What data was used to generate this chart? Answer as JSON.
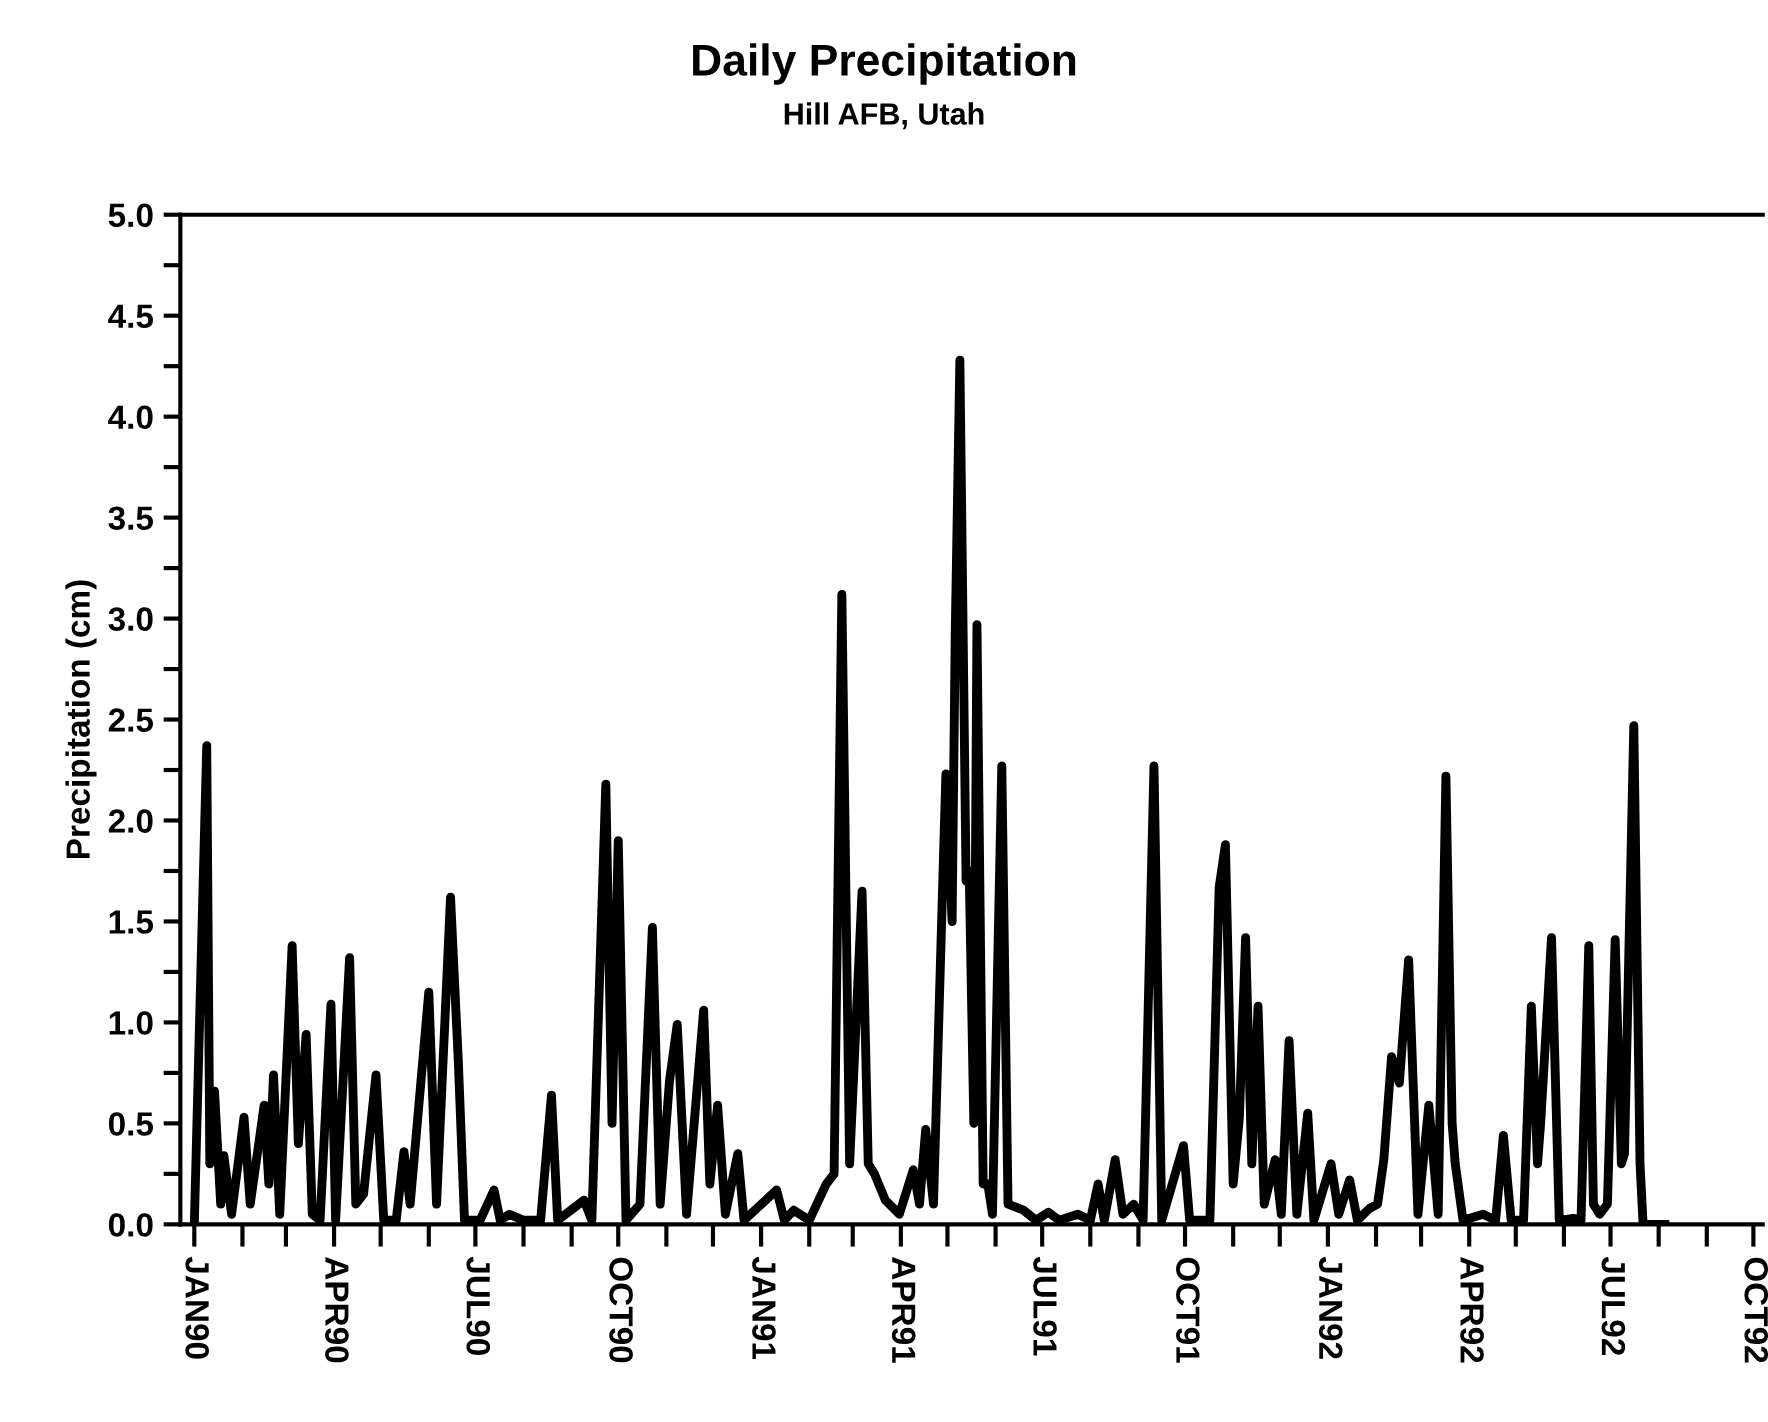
{
  "chart_data": {
    "type": "line",
    "title": "Daily Precipitation",
    "subtitle": "Hill AFB, Utah",
    "ylabel": "Precipitation (cm)",
    "x": [
      "1990-01-01",
      "1990-01-09",
      "1990-01-11",
      "1990-01-14",
      "1990-01-18",
      "1990-01-20",
      "1990-01-25",
      "1990-02-02",
      "1990-02-06",
      "1990-02-15",
      "1990-02-18",
      "1990-02-21",
      "1990-02-25",
      "1990-03-05",
      "1990-03-09",
      "1990-03-14",
      "1990-03-18",
      "1990-03-23",
      "1990-03-30",
      "1990-04-02",
      "1990-04-11",
      "1990-04-15",
      "1990-04-20",
      "1990-04-28",
      "1990-05-03",
      "1990-05-11",
      "1990-05-16",
      "1990-05-20",
      "1990-06-01",
      "1990-06-06",
      "1990-06-15",
      "1990-06-20",
      "1990-06-24",
      "1990-07-04",
      "1990-07-13",
      "1990-07-17",
      "1990-07-23",
      "1990-08-01",
      "1990-08-12",
      "1990-08-19",
      "1990-08-23",
      "1990-09-09",
      "1990-09-14",
      "1990-09-23",
      "1990-09-27",
      "1990-10-01",
      "1990-10-06",
      "1990-10-15",
      "1990-10-23",
      "1990-10-28",
      "1990-11-03",
      "1990-11-08",
      "1990-11-14",
      "1990-11-25",
      "1990-11-29",
      "1990-12-04",
      "1990-12-09",
      "1990-12-17",
      "1990-12-21",
      "1991-01-11",
      "1991-01-16",
      "1991-01-22",
      "1991-02-01",
      "1991-02-12",
      "1991-02-17",
      "1991-02-22",
      "1991-02-27",
      "1991-03-07",
      "1991-03-11",
      "1991-03-15",
      "1991-03-22",
      "1991-03-31",
      "1991-04-09",
      "1991-04-13",
      "1991-04-17",
      "1991-04-22",
      "1991-04-30",
      "1991-05-04",
      "1991-05-06",
      "1991-05-09",
      "1991-05-13",
      "1991-05-15",
      "1991-05-18",
      "1991-05-20",
      "1991-05-24",
      "1991-05-27",
      "1991-05-30",
      "1991-06-05",
      "1991-06-09",
      "1991-06-19",
      "1991-06-27",
      "1991-07-05",
      "1991-07-12",
      "1991-07-24",
      "1991-08-01",
      "1991-08-06",
      "1991-08-10",
      "1991-08-17",
      "1991-08-22",
      "1991-08-29",
      "1991-09-04",
      "1991-09-11",
      "1991-09-16",
      "1991-09-30",
      "1991-10-04",
      "1991-10-17",
      "1991-10-23",
      "1991-10-27",
      "1991-11-01",
      "1991-11-05",
      "1991-11-09",
      "1991-11-13",
      "1991-11-17",
      "1991-11-21",
      "1991-11-28",
      "1991-12-02",
      "1991-12-07",
      "1991-12-12",
      "1991-12-19",
      "1991-12-23",
      "1992-01-03",
      "1992-01-08",
      "1992-01-15",
      "1992-01-20",
      "1992-01-28",
      "1992-02-02",
      "1992-02-06",
      "1992-02-11",
      "1992-02-16",
      "1992-02-22",
      "1992-02-28",
      "1992-03-06",
      "1992-03-12",
      "1992-03-17",
      "1992-03-21",
      "1992-03-23",
      "1992-03-28",
      "1992-04-10",
      "1992-04-18",
      "1992-04-23",
      "1992-04-28",
      "1992-05-06",
      "1992-05-11",
      "1992-05-15",
      "1992-05-17",
      "1992-05-24",
      "1992-05-29",
      "1992-06-07",
      "1992-06-12",
      "1992-06-17",
      "1992-06-20",
      "1992-06-24",
      "1992-06-29",
      "1992-07-04",
      "1992-07-08",
      "1992-07-10",
      "1992-07-16",
      "1992-07-20",
      "1992-07-22",
      "1992-08-05"
    ],
    "series": [
      {
        "color": "#000000",
        "values": [
          0,
          2.37,
          0.3,
          0.66,
          0.1,
          0.34,
          0.05,
          0.53,
          0.1,
          0.59,
          0.2,
          0.74,
          0.05,
          1.38,
          0.4,
          0.94,
          0.05,
          0.02,
          1.09,
          0.02,
          1.32,
          0.1,
          0.15,
          0.74,
          0.02,
          0.02,
          0.36,
          0.1,
          1.15,
          0.1,
          1.62,
          0.81,
          0.02,
          0.02,
          0.17,
          0.02,
          0.05,
          0.02,
          0.02,
          0.64,
          0.02,
          0.12,
          0.02,
          2.18,
          0.5,
          1.9,
          0.02,
          0.1,
          1.47,
          0.1,
          0.71,
          0.99,
          0.05,
          1.06,
          0.2,
          0.59,
          0.05,
          0.35,
          0.02,
          0.17,
          0.02,
          0.07,
          0.02,
          0.2,
          0.25,
          3.12,
          0.3,
          1.65,
          0.3,
          0.25,
          0.12,
          0.05,
          0.27,
          0.1,
          0.47,
          0.1,
          2.23,
          1.5,
          2.92,
          4.28,
          1.7,
          1.75,
          0.5,
          2.97,
          0.2,
          0.2,
          0.05,
          2.27,
          0.1,
          0.07,
          0.02,
          0.06,
          0.02,
          0.05,
          0.02,
          0.2,
          0.02,
          0.32,
          0.05,
          0.1,
          0.02,
          2.27,
          0.02,
          0.39,
          0.02,
          0.02,
          1.67,
          1.88,
          0.2,
          0.53,
          1.42,
          0.3,
          1.08,
          0.1,
          0.32,
          0.05,
          0.91,
          0.05,
          0.55,
          0.02,
          0.3,
          0.05,
          0.22,
          0.02,
          0.08,
          0.1,
          0.32,
          0.83,
          0.7,
          1.31,
          0.05,
          0.59,
          0.05,
          2.22,
          0.5,
          0.3,
          0.02,
          0.05,
          0.02,
          0.44,
          0.02,
          0.02,
          1.08,
          0.3,
          0.5,
          1.42,
          0.02,
          0.03,
          0.02,
          1.38,
          0.1,
          0.05,
          0.1,
          1.41,
          0.3,
          0.35,
          2.47,
          0.3,
          0,
          0
        ]
      }
    ],
    "xlim": [
      "1989-12-23",
      "1992-10-07"
    ],
    "xticks": [
      {
        "value": "1990-01-01",
        "label": "JAN90"
      },
      {
        "value": "1990-02-01",
        "label": null
      },
      {
        "value": "1990-03-01",
        "label": null
      },
      {
        "value": "1990-04-01",
        "label": "APR90"
      },
      {
        "value": "1990-05-01",
        "label": null
      },
      {
        "value": "1990-06-01",
        "label": null
      },
      {
        "value": "1990-07-01",
        "label": "JUL90"
      },
      {
        "value": "1990-08-01",
        "label": null
      },
      {
        "value": "1990-09-01",
        "label": null
      },
      {
        "value": "1990-10-01",
        "label": "OCT90"
      },
      {
        "value": "1990-11-01",
        "label": null
      },
      {
        "value": "1990-12-01",
        "label": null
      },
      {
        "value": "1991-01-01",
        "label": "JAN91"
      },
      {
        "value": "1991-02-01",
        "label": null
      },
      {
        "value": "1991-03-01",
        "label": null
      },
      {
        "value": "1991-04-01",
        "label": "APR91"
      },
      {
        "value": "1991-05-01",
        "label": null
      },
      {
        "value": "1991-06-01",
        "label": null
      },
      {
        "value": "1991-07-01",
        "label": "JUL91"
      },
      {
        "value": "1991-08-01",
        "label": null
      },
      {
        "value": "1991-09-01",
        "label": null
      },
      {
        "value": "1991-10-01",
        "label": "OCT91"
      },
      {
        "value": "1991-11-01",
        "label": null
      },
      {
        "value": "1991-12-01",
        "label": null
      },
      {
        "value": "1992-01-01",
        "label": "JAN92"
      },
      {
        "value": "1992-02-01",
        "label": null
      },
      {
        "value": "1992-03-01",
        "label": null
      },
      {
        "value": "1992-04-01",
        "label": "APR92"
      },
      {
        "value": "1992-05-01",
        "label": null
      },
      {
        "value": "1992-06-01",
        "label": null
      },
      {
        "value": "1992-07-01",
        "label": "JUL92"
      },
      {
        "value": "1992-08-01",
        "label": null
      },
      {
        "value": "1992-09-01",
        "label": null
      },
      {
        "value": "1992-10-01",
        "label": "OCT92"
      }
    ],
    "ylim": [
      0,
      5
    ],
    "yticks": [
      {
        "value": 0,
        "label": "0.0"
      },
      {
        "value": 0.25,
        "label": null
      },
      {
        "value": 0.5,
        "label": "0.5"
      },
      {
        "value": 0.75,
        "label": null
      },
      {
        "value": 1,
        "label": "1.0"
      },
      {
        "value": 1.25,
        "label": null
      },
      {
        "value": 1.5,
        "label": "1.5"
      },
      {
        "value": 1.75,
        "label": null
      },
      {
        "value": 2,
        "label": "2.0"
      },
      {
        "value": 2.25,
        "label": null
      },
      {
        "value": 2.5,
        "label": "2.5"
      },
      {
        "value": 2.75,
        "label": null
      },
      {
        "value": 3,
        "label": "3.0"
      },
      {
        "value": 3.25,
        "label": null
      },
      {
        "value": 3.5,
        "label": "3.5"
      },
      {
        "value": 3.75,
        "label": null
      },
      {
        "value": 4,
        "label": "4.0"
      },
      {
        "value": 4.25,
        "label": null
      },
      {
        "value": 4.5,
        "label": "4.5"
      },
      {
        "value": 4.75,
        "label": null
      },
      {
        "value": 5,
        "label": "5.0"
      }
    ],
    "grid": false,
    "legend": false,
    "marker": "none",
    "line_style": "solid"
  }
}
